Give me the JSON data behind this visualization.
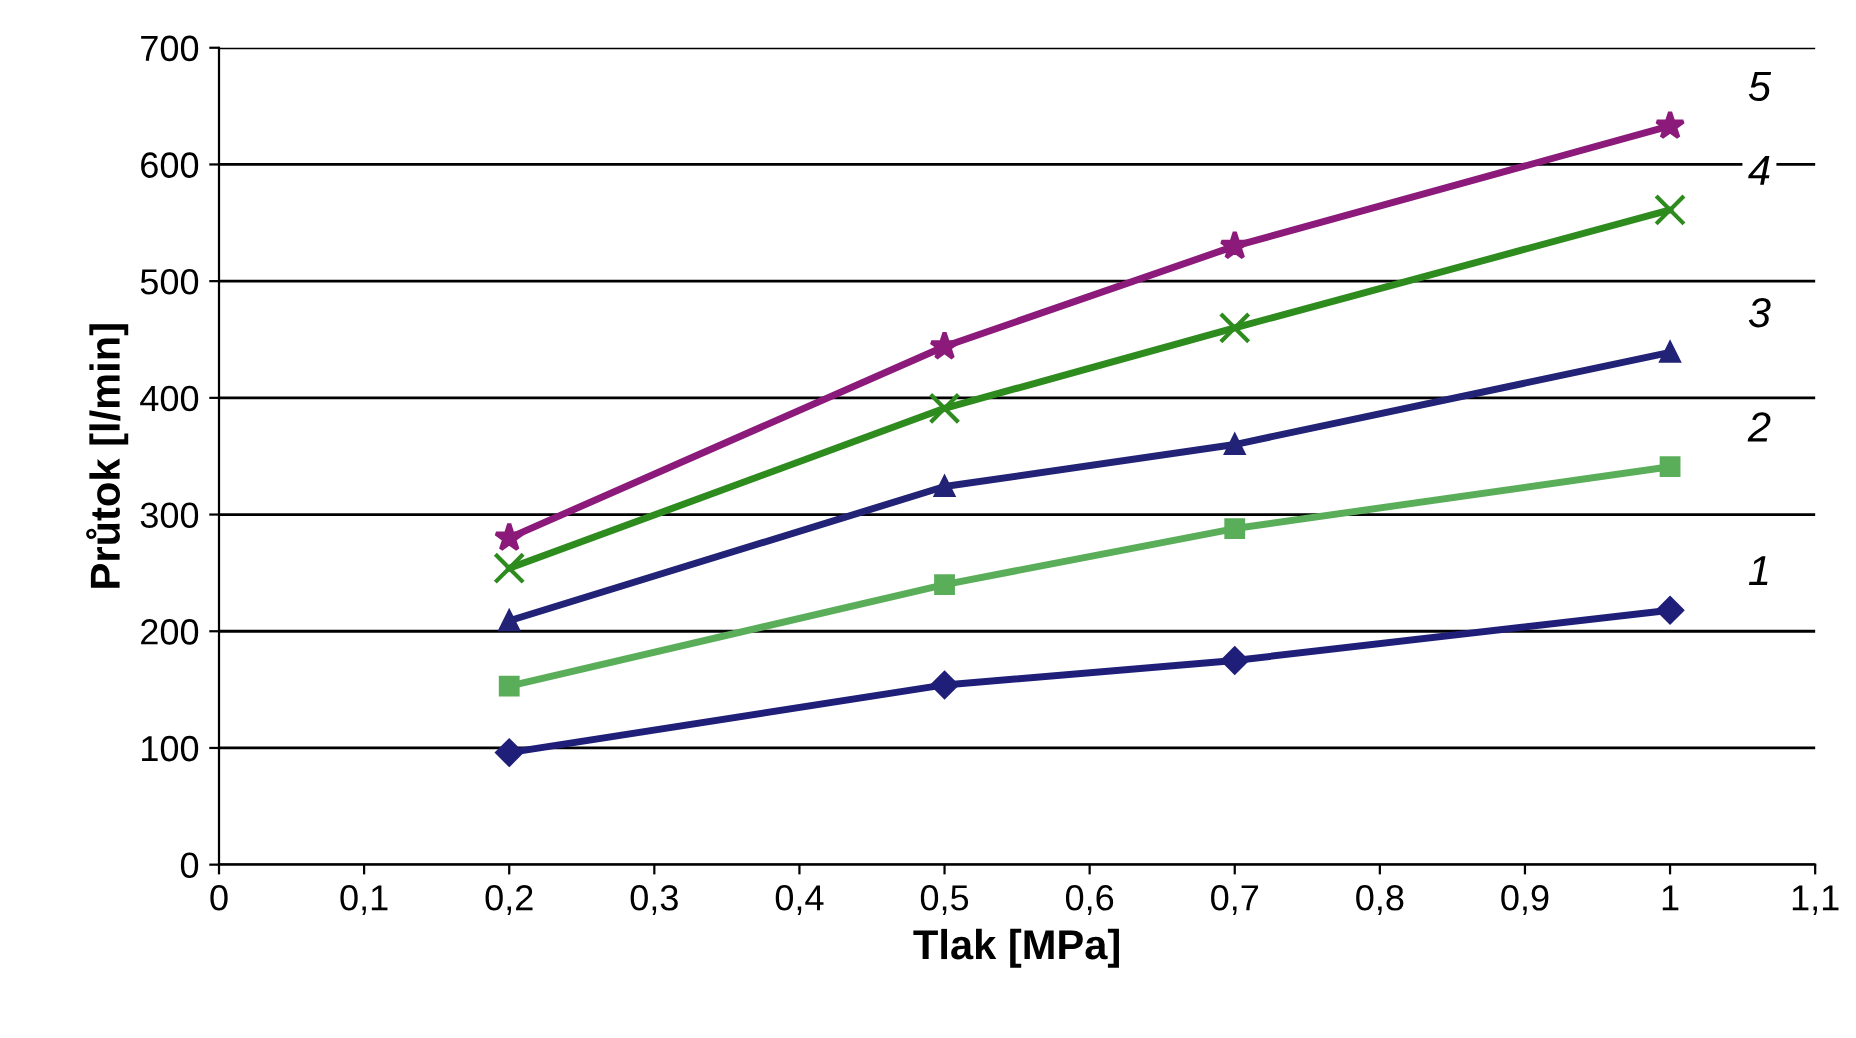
{
  "chart_data": {
    "type": "line",
    "xlabel": "Tlak [MPa]",
    "ylabel": "Průtok [l/min]",
    "x": [
      0.2,
      0.5,
      0.7,
      1.0
    ],
    "series": [
      {
        "name": "1",
        "color": "#1f1f7a",
        "marker": "diamond",
        "values": [
          96,
          154,
          175,
          218
        ]
      },
      {
        "name": "2",
        "color": "#5aae5a",
        "marker": "square",
        "values": [
          153,
          240,
          288,
          341
        ]
      },
      {
        "name": "3",
        "color": "#222277",
        "marker": "triangle",
        "values": [
          209,
          324,
          360,
          439
        ]
      },
      {
        "name": "4",
        "color": "#2e8b1e",
        "marker": "cross",
        "values": [
          254,
          391,
          460,
          561
        ]
      },
      {
        "name": "5",
        "color": "#8b1a7a",
        "marker": "star",
        "values": [
          280,
          444,
          530,
          633
        ]
      }
    ],
    "xlim": [
      0,
      1.1
    ],
    "ylim": [
      0,
      700
    ],
    "xticks": [
      0,
      {
        "value": 0.1,
        "label": "0,1"
      },
      {
        "value": 0.2,
        "label": "0,2"
      },
      {
        "value": 0.3,
        "label": "0,3"
      },
      {
        "value": 0.4,
        "label": "0,4"
      },
      {
        "value": 0.5,
        "label": "0,5"
      },
      {
        "value": 0.6,
        "label": "0,6"
      },
      {
        "value": 0.7,
        "label": "0,7"
      },
      {
        "value": 0.8,
        "label": "0,8"
      },
      {
        "value": 0.9,
        "label": "0,9"
      },
      1,
      {
        "value": 1.1,
        "label": "1,1"
      }
    ],
    "yticks": [
      0,
      100,
      200,
      300,
      400,
      500,
      600,
      700
    ],
    "grid": "y",
    "line_style": "solid",
    "legend": false
  }
}
